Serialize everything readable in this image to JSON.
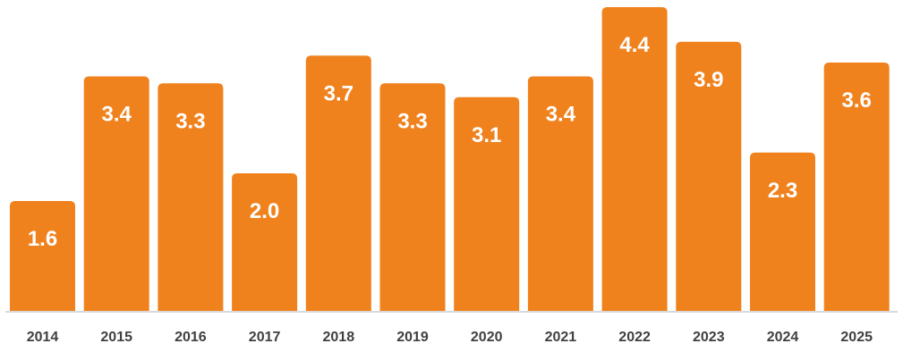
{
  "chart_data": {
    "type": "bar",
    "categories": [
      "2014",
      "2015",
      "2016",
      "2017",
      "2018",
      "2019",
      "2020",
      "2021",
      "2022",
      "2023",
      "2024",
      "2025"
    ],
    "values": [
      1.6,
      3.4,
      3.3,
      2.0,
      3.7,
      3.3,
      3.1,
      3.4,
      4.4,
      3.9,
      2.3,
      3.6
    ],
    "value_labels": [
      "1.6",
      "3.4",
      "3.3",
      "2.0",
      "3.7",
      "3.3",
      "3.1",
      "3.4",
      "4.4",
      "3.9",
      "2.3",
      "3.6"
    ],
    "bar_color": "#F0821E",
    "label_color": "#FFFFFF",
    "axis_color": "#D9D9D9",
    "tick_color": "#404040",
    "grid": false,
    "legend": "none"
  }
}
